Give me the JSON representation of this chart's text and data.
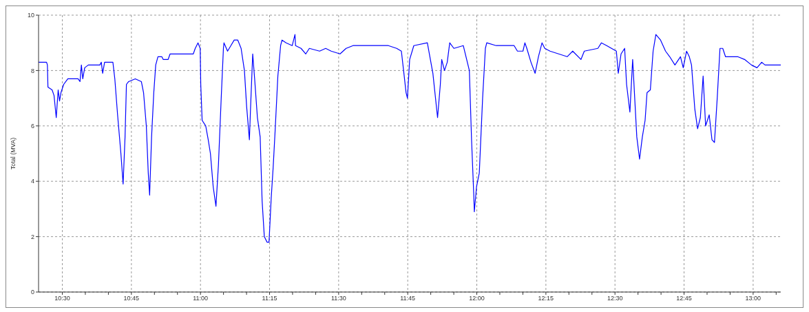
{
  "chart_data": {
    "type": "line",
    "ylabel": "Total (MVA)",
    "grid": true,
    "marker": "none",
    "xlim": [
      10.414,
      13.1
    ],
    "ylim": [
      0,
      10
    ],
    "yticks": [
      0,
      2,
      4,
      6,
      8,
      10
    ],
    "xticks": [
      {
        "value": 10.5,
        "label": "10:30"
      },
      {
        "value": 10.5833,
        "label": null
      },
      {
        "value": 10.6667,
        "label": null
      },
      {
        "value": 10.75,
        "label": "10:45"
      },
      {
        "value": 10.8333,
        "label": null
      },
      {
        "value": 10.9167,
        "label": null
      },
      {
        "value": 11,
        "label": "11:00"
      },
      {
        "value": 11.0833,
        "label": null
      },
      {
        "value": 11.1667,
        "label": null
      },
      {
        "value": 11.25,
        "label": "11:15"
      },
      {
        "value": 11.3333,
        "label": null
      },
      {
        "value": 11.4167,
        "label": null
      },
      {
        "value": 11.5,
        "label": "11:30"
      },
      {
        "value": 11.5833,
        "label": null
      },
      {
        "value": 11.6667,
        "label": null
      },
      {
        "value": 11.75,
        "label": "11:45"
      },
      {
        "value": 11.8333,
        "label": null
      },
      {
        "value": 11.9167,
        "label": null
      },
      {
        "value": 12,
        "label": "12:00"
      },
      {
        "value": 12.0833,
        "label": null
      },
      {
        "value": 12.1667,
        "label": null
      },
      {
        "value": 12.25,
        "label": "12:15"
      },
      {
        "value": 12.3333,
        "label": null
      },
      {
        "value": 12.4167,
        "label": null
      },
      {
        "value": 12.5,
        "label": "12:30"
      },
      {
        "value": 12.5833,
        "label": null
      },
      {
        "value": 12.6667,
        "label": null
      },
      {
        "value": 12.75,
        "label": "12:45"
      },
      {
        "value": 12.8333,
        "label": null
      },
      {
        "value": 12.9167,
        "label": null
      },
      {
        "value": 13,
        "label": "13:00"
      },
      {
        "value": 13.0833,
        "label": null
      }
    ],
    "series": [
      {
        "color": "#0000ff",
        "x": [
          10.414,
          10.443,
          10.446,
          10.448,
          10.463,
          10.47,
          10.478,
          10.485,
          10.49,
          10.495,
          10.505,
          10.52,
          10.557,
          10.564,
          10.569,
          10.574,
          10.581,
          10.594,
          10.636,
          10.641,
          10.646,
          10.653,
          10.683,
          10.69,
          10.7,
          10.712,
          10.72,
          10.727,
          10.732,
          10.74,
          10.764,
          10.786,
          10.794,
          10.804,
          10.811,
          10.816,
          10.823,
          10.831,
          10.838,
          10.846,
          10.86,
          10.865,
          10.883,
          10.89,
          10.92,
          10.974,
          10.981,
          10.991,
          10.999,
          11.001,
          11.006,
          11.019,
          11.028,
          11.036,
          11.046,
          11.056,
          11.065,
          11.075,
          11.083,
          11.085,
          11.098,
          11.11,
          11.122,
          11.135,
          11.147,
          11.159,
          11.167,
          11.177,
          11.181,
          11.189,
          11.196,
          11.206,
          11.216,
          11.223,
          11.231,
          11.241,
          11.248,
          11.256,
          11.263,
          11.27,
          11.28,
          11.29,
          11.295,
          11.31,
          11.332,
          11.342,
          11.344,
          11.364,
          11.381,
          11.394,
          11.431,
          11.453,
          11.473,
          11.505,
          11.527,
          11.552,
          11.68,
          11.71,
          11.727,
          11.735,
          11.744,
          11.749,
          11.757,
          11.772,
          11.821,
          11.841,
          11.858,
          11.868,
          11.873,
          11.883,
          11.893,
          11.902,
          11.917,
          11.951,
          11.973,
          11.981,
          11.989,
          11.991,
          11.999,
          12.009,
          12.021,
          12.031,
          12.036,
          12.07,
          12.095,
          12.135,
          12.147,
          12.167,
          12.174,
          12.181,
          12.196,
          12.211,
          12.223,
          12.236,
          12.246,
          12.265,
          12.327,
          12.347,
          12.377,
          12.389,
          12.438,
          12.451,
          12.47,
          12.505,
          12.512,
          12.522,
          12.535,
          12.542,
          12.554,
          12.564,
          12.572,
          12.579,
          12.589,
          12.599,
          12.609,
          12.616,
          12.628,
          12.638,
          12.648,
          12.665,
          12.683,
          12.698,
          12.717,
          12.737,
          12.747,
          12.759,
          12.769,
          12.777,
          12.789,
          12.799,
          12.809,
          12.819,
          12.828,
          12.841,
          12.851,
          12.86,
          12.87,
          12.88,
          12.89,
          12.9,
          12.944,
          12.969,
          12.994,
          13.014,
          13.031,
          13.043,
          13.065,
          13.1
        ],
        "values": [
          8.3,
          8.3,
          8.2,
          7.4,
          7.3,
          7.1,
          6.3,
          7.3,
          6.9,
          7.2,
          7.5,
          7.7,
          7.7,
          7.6,
          8.2,
          7.7,
          8.1,
          8.2,
          8.2,
          8.3,
          7.9,
          8.3,
          8.3,
          7.7,
          6.4,
          5.0,
          3.9,
          5.6,
          7.5,
          7.6,
          7.7,
          7.6,
          7.2,
          6.0,
          4.3,
          3.5,
          5.6,
          7.2,
          8.2,
          8.5,
          8.5,
          8.4,
          8.4,
          8.6,
          8.6,
          8.6,
          8.8,
          9.0,
          8.8,
          7.5,
          6.2,
          6.0,
          5.5,
          5.0,
          3.8,
          3.1,
          4.6,
          7.0,
          8.8,
          9.0,
          8.7,
          8.9,
          9.1,
          9.1,
          8.8,
          8.0,
          6.7,
          5.5,
          6.6,
          8.6,
          7.7,
          6.3,
          5.6,
          3.3,
          2.0,
          1.8,
          1.8,
          3.4,
          4.5,
          5.8,
          7.8,
          8.9,
          9.1,
          9.0,
          8.9,
          9.3,
          8.9,
          8.8,
          8.6,
          8.8,
          8.7,
          8.8,
          8.7,
          8.6,
          8.8,
          8.9,
          8.9,
          8.8,
          8.7,
          8.0,
          7.2,
          7.0,
          8.4,
          8.9,
          9.0,
          7.9,
          6.3,
          7.5,
          8.4,
          8.0,
          8.3,
          9.0,
          8.8,
          8.9,
          8.0,
          5.5,
          3.5,
          2.9,
          3.8,
          4.3,
          7.0,
          8.8,
          9.0,
          8.9,
          8.9,
          8.9,
          8.7,
          8.7,
          9.0,
          8.8,
          8.3,
          7.9,
          8.5,
          9.0,
          8.8,
          8.7,
          8.5,
          8.7,
          8.4,
          8.7,
          8.8,
          9.0,
          8.9,
          8.7,
          7.9,
          8.6,
          8.8,
          7.5,
          6.5,
          8.4,
          6.9,
          5.6,
          4.8,
          5.6,
          6.2,
          7.2,
          7.3,
          8.7,
          9.3,
          9.1,
          8.7,
          8.5,
          8.2,
          8.5,
          8.1,
          8.7,
          8.5,
          8.2,
          6.6,
          5.9,
          6.3,
          7.8,
          6.0,
          6.4,
          5.5,
          5.4,
          7.0,
          8.8,
          8.8,
          8.5,
          8.5,
          8.4,
          8.2,
          8.1,
          8.3,
          8.2,
          8.2,
          8.2
        ]
      }
    ]
  }
}
